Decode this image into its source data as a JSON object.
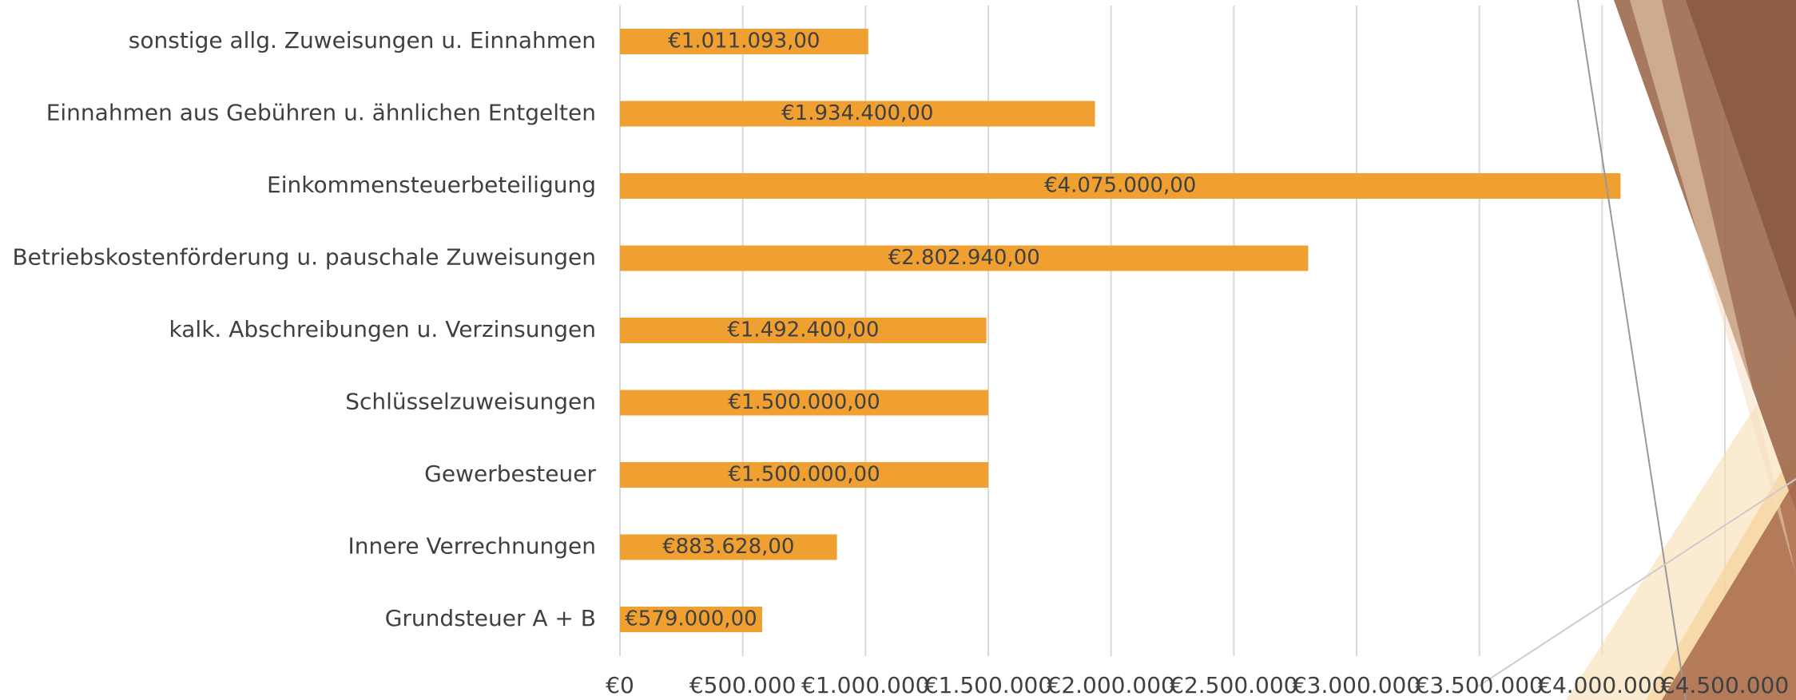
{
  "chart_data": {
    "type": "bar",
    "orientation": "horizontal",
    "categories": [
      "sonstige allg. Zuweisungen u. Einnahmen",
      "Einnahmen aus Gebühren u. ähnlichen Entgelten",
      "Einkommensteuerbeteiligung",
      "Betriebskostenförderung u. pauschale Zuweisungen",
      "kalk. Abschreibungen u. Verzinsungen",
      "Schlüsselzuweisungen",
      "Gewerbesteuer",
      "Innere Verrechnungen",
      "Grundsteuer A + B"
    ],
    "values": [
      1011093,
      1934400,
      4075000,
      2802940,
      1492400,
      1500000,
      1500000,
      883628,
      579000
    ],
    "value_labels": [
      "€1.011.093,00",
      "€1.934.400,00",
      "€4.075.000,00",
      "€2.802.940,00",
      "€1.492.400,00",
      "€1.500.000,00",
      "€1.500.000,00",
      "€883.628,00",
      "€579.000,00"
    ],
    "color": "#f0a030",
    "xlim": [
      0,
      4500000
    ],
    "xticks": [
      {
        "value": 0,
        "label": "€0"
      },
      {
        "value": 500000,
        "label": "€500.000"
      },
      {
        "value": 1000000,
        "label": "€1.000.000"
      },
      {
        "value": 1500000,
        "label": "€1.500.000"
      },
      {
        "value": 2000000,
        "label": "€2.000.000"
      },
      {
        "value": 2500000,
        "label": "€2.500.000"
      },
      {
        "value": 3000000,
        "label": "€3.000.000"
      },
      {
        "value": 3500000,
        "label": "€3.500.000"
      },
      {
        "value": 4000000,
        "label": "€4.000.000"
      },
      {
        "value": 4500000,
        "label": "€4.500.000"
      }
    ],
    "grid": true
  }
}
